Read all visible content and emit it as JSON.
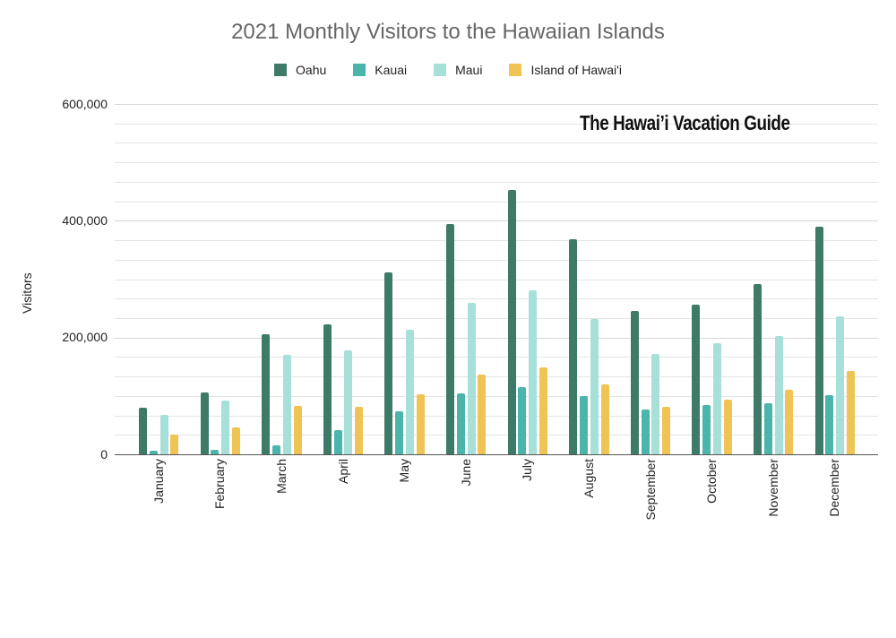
{
  "chart_data": {
    "type": "bar",
    "title": "2021 Monthly Visitors to the Hawaiian Islands",
    "xlabel": "",
    "ylabel": "Visitors",
    "ylim": [
      0,
      600000
    ],
    "yticks": [
      0,
      200000,
      400000,
      600000
    ],
    "ytick_labels": [
      "0",
      "200,000",
      "400,000",
      "600,000"
    ],
    "grid": true,
    "legend_position": "top",
    "categories": [
      "January",
      "February",
      "March",
      "April",
      "May",
      "June",
      "July",
      "August",
      "September",
      "October",
      "November",
      "December"
    ],
    "series": [
      {
        "name": "Oahu",
        "color": "#3d7a68",
        "values": [
          80000,
          106000,
          206000,
          222000,
          311000,
          394000,
          453000,
          368000,
          245000,
          257000,
          291000,
          390000
        ]
      },
      {
        "name": "Kauai",
        "color": "#4cb5ab",
        "values": [
          6000,
          8000,
          16000,
          41000,
          73000,
          104000,
          115000,
          99000,
          77000,
          85000,
          88000,
          101000
        ]
      },
      {
        "name": "Maui",
        "color": "#a7e0d8",
        "values": [
          67000,
          92000,
          170000,
          178000,
          213000,
          259000,
          281000,
          232000,
          172000,
          190000,
          202000,
          236000
        ]
      },
      {
        "name": "Island of Hawai'i",
        "color": "#f0c454",
        "values": [
          34000,
          46000,
          83000,
          81000,
          103000,
          137000,
          149000,
          119000,
          81000,
          93000,
          110000,
          142000
        ]
      }
    ],
    "annotations": [
      "The Hawai’i Vacation Guide"
    ]
  },
  "header": {
    "title": "2021 Monthly Visitors to the Hawaiian Islands"
  },
  "legend": [
    {
      "label": "Oahu",
      "color": "#3d7a68"
    },
    {
      "label": "Kauai",
      "color": "#4cb5ab"
    },
    {
      "label": "Maui",
      "color": "#a7e0d8"
    },
    {
      "label": "Island of Hawai'i",
      "color": "#f0c454"
    }
  ],
  "axis": {
    "ylabel": "Visitors",
    "yticks": [
      "600,000",
      "400,000",
      "200,000",
      "0"
    ]
  },
  "watermark": "The Hawai’i Vacation Guide"
}
